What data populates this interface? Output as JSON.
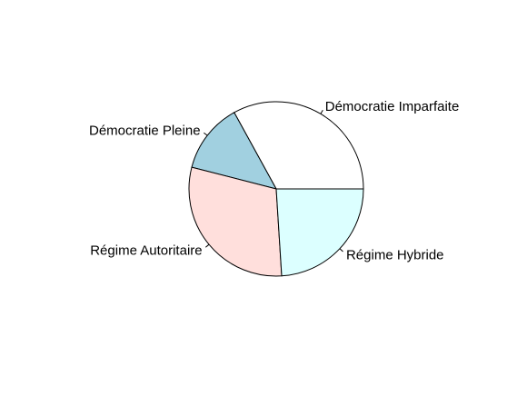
{
  "chart_data": {
    "type": "pie",
    "title": "",
    "start_angle_deg": 0,
    "direction": "counterclockwise",
    "slices": [
      {
        "label": "Démocratie Imparfaite",
        "value": 33,
        "color": "#ffffff"
      },
      {
        "label": "Démocratie Pleine",
        "value": 13,
        "color": "#a1d0e0"
      },
      {
        "label": "Régime Autoritaire",
        "value": 30,
        "color": "#ffdfdc"
      },
      {
        "label": "Régime Hybride",
        "value": 24,
        "color": "#dcffff"
      }
    ]
  }
}
